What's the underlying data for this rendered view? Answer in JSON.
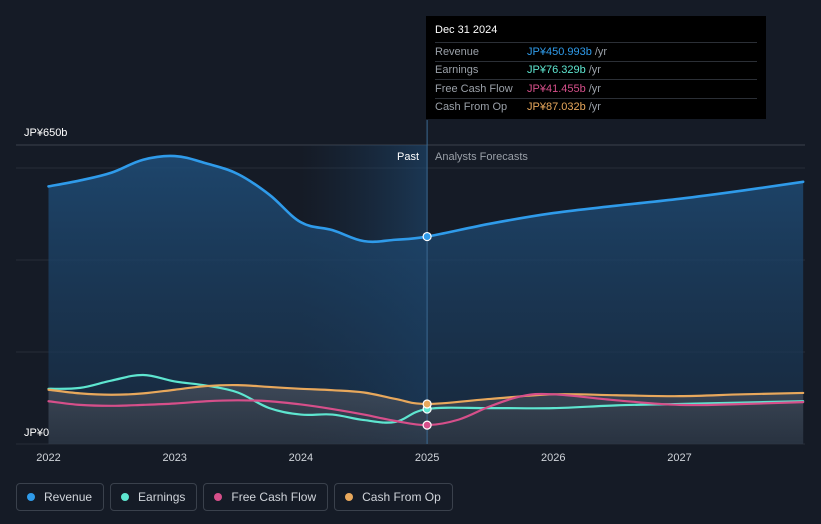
{
  "chart_data": {
    "type": "area",
    "y_top_label": "JP¥650b",
    "y_bottom_label": "JP¥0",
    "ylim": [
      0,
      650
    ],
    "xlim": [
      2021.75,
      2027.98
    ],
    "x_ticks": [
      2022,
      2023,
      2024,
      2025,
      2026,
      2027
    ],
    "x_tick_labels": [
      "2022",
      "2023",
      "2024",
      "2025",
      "2026",
      "2027"
    ],
    "past_label": "Past",
    "forecast_label": "Analysts Forecasts",
    "divider_x": 2025.0,
    "past_shade_start_x": 2024.0,
    "series": [
      {
        "name": "Revenue",
        "color": "#2f9bea",
        "filled": true,
        "x": [
          2022.0,
          2022.25,
          2022.5,
          2022.75,
          2023.0,
          2023.25,
          2023.5,
          2023.75,
          2024.0,
          2024.25,
          2024.5,
          2024.75,
          2025.0,
          2025.5,
          2026.0,
          2026.5,
          2027.0,
          2027.5,
          2027.98
        ],
        "y": [
          560,
          573,
          590,
          618,
          626,
          610,
          587,
          542,
          482,
          465,
          441,
          444,
          451,
          479,
          502,
          518,
          533,
          551,
          570
        ]
      },
      {
        "name": "Earnings",
        "color": "#5ee6d0",
        "filled": false,
        "x": [
          2022.0,
          2022.25,
          2022.5,
          2022.75,
          2023.0,
          2023.25,
          2023.5,
          2023.75,
          2024.0,
          2024.25,
          2024.5,
          2024.75,
          2025.0,
          2025.5,
          2026.0,
          2026.5,
          2027.0,
          2027.5,
          2027.98
        ],
        "y": [
          120,
          122,
          138,
          150,
          136,
          127,
          112,
          78,
          64,
          64,
          52,
          48,
          76,
          78,
          78,
          84,
          87,
          90,
          93
        ]
      },
      {
        "name": "Free Cash Flow",
        "color": "#d64f8a",
        "filled": false,
        "x": [
          2022.0,
          2022.25,
          2022.5,
          2022.75,
          2023.0,
          2023.25,
          2023.5,
          2023.75,
          2024.0,
          2024.25,
          2024.5,
          2024.75,
          2025.0,
          2025.25,
          2025.5,
          2025.75,
          2026.0,
          2026.5,
          2027.0,
          2027.5,
          2027.98
        ],
        "y": [
          93,
          85,
          83,
          85,
          88,
          93,
          95,
          93,
          86,
          76,
          64,
          50,
          41,
          53,
          82,
          104,
          108,
          95,
          85,
          87,
          91
        ]
      },
      {
        "name": "Cash From Op",
        "color": "#e8a85c",
        "filled": false,
        "x": [
          2022.0,
          2022.25,
          2022.5,
          2022.75,
          2023.0,
          2023.25,
          2023.5,
          2023.75,
          2024.0,
          2024.25,
          2024.5,
          2024.75,
          2025.0,
          2025.5,
          2026.0,
          2026.5,
          2027.0,
          2027.5,
          2027.98
        ],
        "y": [
          118,
          110,
          107,
          110,
          118,
          126,
          128,
          124,
          120,
          117,
          112,
          98,
          87,
          98,
          108,
          106,
          104,
          108,
          111
        ]
      }
    ],
    "highlight": {
      "x": 2025.0
    }
  },
  "tooltip": {
    "date": "Dec 31 2024",
    "rows": [
      {
        "label": "Revenue",
        "value": "JP¥450.993b",
        "unit": "/yr",
        "color": "#2f9bea"
      },
      {
        "label": "Earnings",
        "value": "JP¥76.329b",
        "unit": "/yr",
        "color": "#5ee6d0"
      },
      {
        "label": "Free Cash Flow",
        "value": "JP¥41.455b",
        "unit": "/yr",
        "color": "#d64f8a"
      },
      {
        "label": "Cash From Op",
        "value": "JP¥87.032b",
        "unit": "/yr",
        "color": "#e8a85c"
      }
    ]
  },
  "legend": [
    {
      "label": "Revenue",
      "color": "#2f9bea"
    },
    {
      "label": "Earnings",
      "color": "#5ee6d0"
    },
    {
      "label": "Free Cash Flow",
      "color": "#d64f8a"
    },
    {
      "label": "Cash From Op",
      "color": "#e8a85c"
    }
  ]
}
